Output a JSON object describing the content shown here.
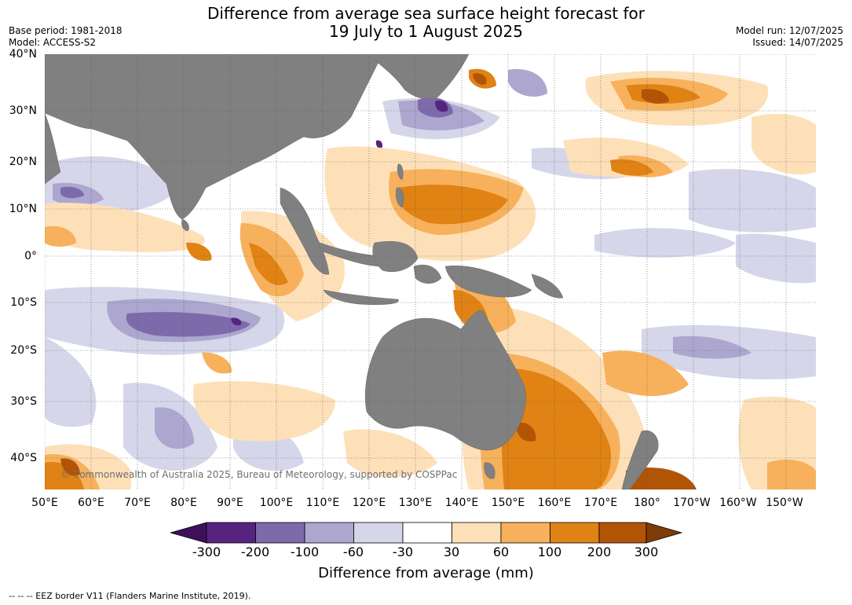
{
  "title_line1": "Difference from average sea surface height forecast for",
  "title_line2": "19 July to 1 August 2025",
  "base_period": "Base period: 1981-2018",
  "model": "Model: ACCESS-S2",
  "model_run": "Model run: 12/07/2025",
  "issued": "Issued: 14/07/2025",
  "lat_labels": [
    "40°N",
    "30°N",
    "20°N",
    "10°N",
    "0°",
    "10°S",
    "20°S",
    "30°S",
    "40°S"
  ],
  "lon_labels": [
    "50°E",
    "60°E",
    "70°E",
    "80°E",
    "90°E",
    "100°E",
    "110°E",
    "120°E",
    "130°E",
    "140°E",
    "150°E",
    "160°E",
    "170°E",
    "180°",
    "170°W",
    "160°W",
    "150°W"
  ],
  "copyright": "© Commonwealth of Australia 2025, Bureau of Meteorology, supported by COSPPac",
  "colorbar": {
    "ticks": [
      "-300",
      "-200",
      "-100",
      "-60",
      "-30",
      "30",
      "60",
      "100",
      "200",
      "300"
    ],
    "colors": [
      "#3f0f5c",
      "#57237f",
      "#7d6aab",
      "#ada6cf",
      "#d6d6ea",
      "#ffffff",
      "#fde0b8",
      "#f7b15c",
      "#e08214",
      "#b15406",
      "#7f3b08"
    ],
    "label": "Difference from average (mm)"
  },
  "footnote": "--  --  -- EEZ border V11 (Flanders Marine Institute, 2019)."
}
